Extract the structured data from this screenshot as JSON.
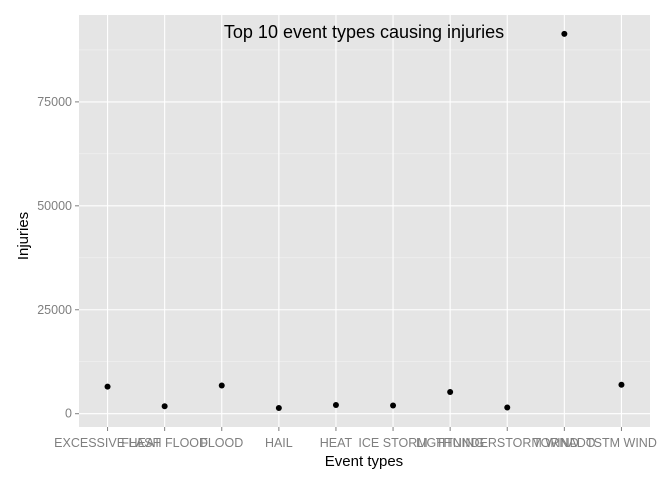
{
  "chart_data": {
    "type": "scatter",
    "title": "Top 10 event types causing injuries",
    "xlabel": "Event types",
    "ylabel": "Injuries",
    "categories": [
      "EXCESSIVE HEAT",
      "FLASH FLOOD",
      "FLOOD",
      "HAIL",
      "HEAT",
      "ICE STORM",
      "LIGHTNING",
      "THUNDERSTORM WIND",
      "TORNADO",
      "TSTM WIND"
    ],
    "values": [
      6525,
      1777,
      6789,
      1361,
      2100,
      1975,
      5230,
      1488,
      91346,
      6957
    ],
    "y_ticks": [
      0,
      25000,
      50000,
      75000
    ],
    "y_tick_labels": [
      "0",
      "25000",
      "50000",
      "75000"
    ],
    "ylim": [
      -3200,
      95900
    ],
    "grid": true,
    "colors": {
      "panel_background": "#e5e5e5",
      "grid_major": "#ffffff",
      "grid_minor": "#f2f2f2",
      "point": "#000000",
      "tick_label": "#7f7f7f"
    }
  }
}
